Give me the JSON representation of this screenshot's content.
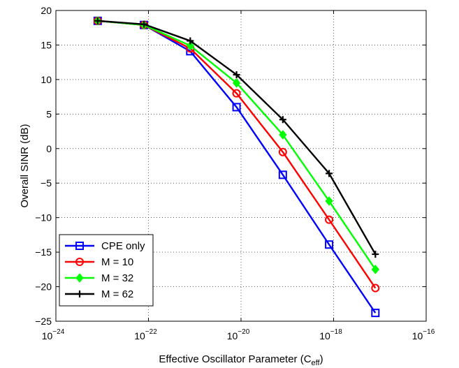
{
  "chart_data": {
    "type": "line",
    "xscale": "log",
    "xlabel": "Effective Oscillator Parameter (C",
    "xlabel_sub": "eff",
    "xlabel_close": ")",
    "ylabel": "Overall SINR (dB)",
    "xlim": [
      1e-24,
      1e-16
    ],
    "ylim": [
      -25,
      20
    ],
    "grid": true,
    "legend_position": "bottom-left",
    "x_ticks": [
      {
        "value": 1e-24,
        "base": "10",
        "exp": "−24"
      },
      {
        "value": 1e-22,
        "base": "10",
        "exp": "−22"
      },
      {
        "value": 1e-20,
        "base": "10",
        "exp": "−20"
      },
      {
        "value": 1e-18,
        "base": "10",
        "exp": "−18"
      },
      {
        "value": 1e-16,
        "base": "10",
        "exp": "−16"
      }
    ],
    "y_ticks": [
      20,
      15,
      10,
      5,
      0,
      -5,
      -10,
      -15,
      -20,
      -25
    ],
    "y_tick_labels": [
      "20",
      "15",
      "10",
      "5",
      "0",
      "−5",
      "−10",
      "−15",
      "−20",
      "−25"
    ],
    "x": [
      8e-24,
      8e-23,
      8e-22,
      8e-21,
      8e-20,
      8e-19,
      8e-18
    ],
    "series": [
      {
        "name": "CPE only",
        "color": "#0000ff",
        "marker": "square",
        "values": [
          18.5,
          17.9,
          14.1,
          6.0,
          -3.8,
          -13.9,
          -23.8
        ]
      },
      {
        "name": "M = 10",
        "color": "#ff0000",
        "marker": "circle",
        "values": [
          18.5,
          17.9,
          14.5,
          8.0,
          -0.5,
          -10.3,
          -20.2
        ]
      },
      {
        "name": "M = 32",
        "color": "#00ff00",
        "marker": "diamond",
        "values": [
          18.5,
          17.9,
          14.9,
          9.5,
          2.0,
          -7.6,
          -17.5
        ]
      },
      {
        "name": "M = 62",
        "color": "#000000",
        "marker": "plus",
        "values": [
          18.5,
          18.0,
          15.6,
          10.7,
          4.2,
          -3.6,
          -15.3
        ]
      }
    ]
  }
}
